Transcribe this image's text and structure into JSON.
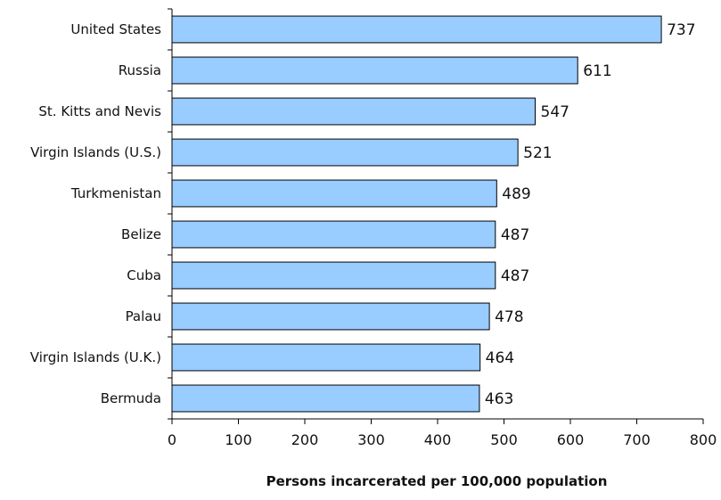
{
  "chart_data": {
    "type": "bar",
    "orientation": "horizontal",
    "categories": [
      "United States",
      "Russia",
      "St. Kitts and Nevis",
      "Virgin Islands (U.S.)",
      "Turkmenistan",
      "Belize",
      "Cuba",
      "Palau",
      "Virgin Islands (U.K.)",
      "Bermuda"
    ],
    "values": [
      737,
      611,
      547,
      521,
      489,
      487,
      487,
      478,
      464,
      463
    ],
    "value_labels": [
      "737",
      "611",
      "547",
      "521",
      "489",
      "487",
      "487",
      "478",
      "464",
      "463"
    ],
    "xlabel": "Persons incarcerated per 100,000 population",
    "xlim": [
      0,
      800
    ],
    "xticks": [
      "0",
      "100",
      "200",
      "300",
      "400",
      "500",
      "600",
      "700",
      "800"
    ],
    "grid": false,
    "legend": "none",
    "bar_color": "#99ccff",
    "bar_edge_color": "#000000"
  }
}
